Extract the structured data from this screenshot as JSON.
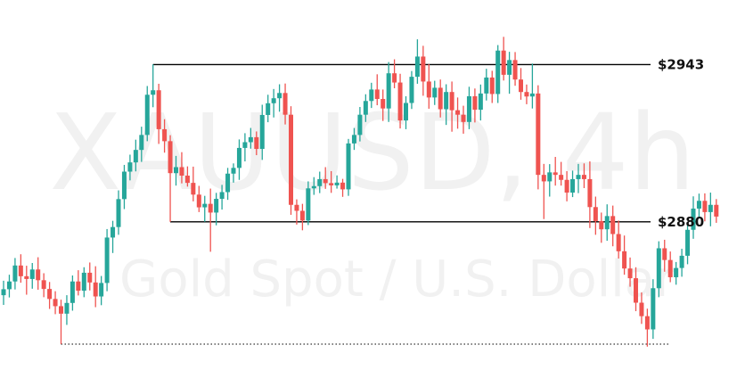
{
  "watermark": {
    "symbol": "XAUUSD, 4h",
    "description": "Gold Spot / U.S. Dollar"
  },
  "chart_data": {
    "type": "candlestick",
    "grid": false,
    "colors": {
      "up": "#26a69a",
      "down": "#ef5350",
      "line": "#000000"
    },
    "ylim": [
      2826,
      2956
    ],
    "levels": [
      {
        "label": "$2943",
        "value": 2943,
        "style": "solid",
        "from_candle": 26
      },
      {
        "label": "$2880",
        "value": 2880,
        "style": "solid",
        "from_candle": 29
      },
      {
        "label": "",
        "value": 2831,
        "style": "dotted",
        "from_candle": 10,
        "to_candle": 116
      }
    ],
    "candles": [
      [
        2850.6,
        2856.4,
        2846.7,
        2853.0
      ],
      [
        2853.0,
        2858.8,
        2849.7,
        2856.1
      ],
      [
        2856.1,
        2865.5,
        2852.9,
        2862.5
      ],
      [
        2862.5,
        2867.0,
        2855.6,
        2858.2
      ],
      [
        2858.2,
        2862.4,
        2850.8,
        2857.1
      ],
      [
        2857.1,
        2863.5,
        2853.2,
        2860.9
      ],
      [
        2860.9,
        2865.8,
        2852.8,
        2856.6
      ],
      [
        2856.6,
        2859.4,
        2849.8,
        2853.1
      ],
      [
        2853.1,
        2855.9,
        2845.1,
        2849.1
      ],
      [
        2849.1,
        2852.2,
        2843.0,
        2846.2
      ],
      [
        2846.2,
        2848.8,
        2831.0,
        2843.2
      ],
      [
        2843.2,
        2850.6,
        2838.7,
        2847.5
      ],
      [
        2847.5,
        2858.5,
        2844.4,
        2856.1
      ],
      [
        2856.1,
        2860.6,
        2850.5,
        2852.4
      ],
      [
        2852.4,
        2861.8,
        2849.8,
        2859.6
      ],
      [
        2859.6,
        2863.7,
        2852.5,
        2855.7
      ],
      [
        2855.7,
        2862.2,
        2845.8,
        2850.1
      ],
      [
        2850.1,
        2858.3,
        2846.6,
        2855.5
      ],
      [
        2855.5,
        2877.1,
        2852.2,
        2873.7
      ],
      [
        2873.7,
        2880.4,
        2867.5,
        2877.9
      ],
      [
        2877.9,
        2892.6,
        2874.8,
        2889.1
      ],
      [
        2889.1,
        2902.8,
        2885.1,
        2900.1
      ],
      [
        2900.1,
        2906.9,
        2896.6,
        2903.8
      ],
      [
        2903.8,
        2912.9,
        2900.2,
        2908.8
      ],
      [
        2908.8,
        2918.1,
        2904.0,
        2914.8
      ],
      [
        2914.8,
        2934.4,
        2912.3,
        2930.9
      ],
      [
        2930.9,
        2943.1,
        2925.9,
        2932.7
      ],
      [
        2932.7,
        2935.3,
        2911.2,
        2917.1
      ],
      [
        2917.1,
        2921.1,
        2907.7,
        2912.3
      ],
      [
        2912.3,
        2914.7,
        2880.0,
        2899.5
      ],
      [
        2899.5,
        2906.4,
        2894.5,
        2901.9
      ],
      [
        2901.9,
        2907.9,
        2895.4,
        2898.5
      ],
      [
        2898.5,
        2902.2,
        2894.1,
        2895.6
      ],
      [
        2895.6,
        2902.1,
        2888.2,
        2890.9
      ],
      [
        2890.9,
        2894.4,
        2883.9,
        2885.8
      ],
      [
        2885.8,
        2890.4,
        2880.0,
        2887.2
      ],
      [
        2887.2,
        2893.3,
        2868.0,
        2883.7
      ],
      [
        2883.7,
        2891.6,
        2878.6,
        2889.2
      ],
      [
        2889.2,
        2894.8,
        2884.9,
        2891.9
      ],
      [
        2891.9,
        2901.6,
        2888.8,
        2899.3
      ],
      [
        2899.3,
        2903.4,
        2895.7,
        2901.6
      ],
      [
        2901.6,
        2913.0,
        2896.8,
        2909.6
      ],
      [
        2909.6,
        2915.5,
        2904.2,
        2911.9
      ],
      [
        2911.9,
        2917.6,
        2909.3,
        2913.9
      ],
      [
        2913.9,
        2916.2,
        2906.7,
        2909.2
      ],
      [
        2909.2,
        2926.9,
        2904.8,
        2922.8
      ],
      [
        2922.8,
        2930.9,
        2919.9,
        2927.5
      ],
      [
        2927.5,
        2933.2,
        2921.8,
        2929.5
      ],
      [
        2929.5,
        2935.1,
        2924.1,
        2931.6
      ],
      [
        2931.6,
        2935.4,
        2919.0,
        2922.9
      ],
      [
        2922.9,
        2926.3,
        2882.8,
        2886.8
      ],
      [
        2886.8,
        2889.0,
        2878.9,
        2884.4
      ],
      [
        2884.4,
        2887.2,
        2876.6,
        2880.5
      ],
      [
        2880.5,
        2896.2,
        2878.7,
        2893.4
      ],
      [
        2893.4,
        2897.9,
        2890.8,
        2894.3
      ],
      [
        2894.3,
        2900.1,
        2891.5,
        2897.1
      ],
      [
        2897.1,
        2901.9,
        2893.2,
        2895.5
      ],
      [
        2895.5,
        2900.3,
        2891.6,
        2894.6
      ],
      [
        2894.6,
        2898.6,
        2893.3,
        2895.7
      ],
      [
        2895.7,
        2897.2,
        2890.0,
        2893.0
      ],
      [
        2893.0,
        2913.2,
        2890.4,
        2911.4
      ],
      [
        2911.4,
        2917.6,
        2908.8,
        2914.8
      ],
      [
        2914.8,
        2926.0,
        2912.2,
        2922.9
      ],
      [
        2922.9,
        2931.1,
        2920.0,
        2928.4
      ],
      [
        2928.4,
        2935.7,
        2925.6,
        2933.0
      ],
      [
        2933.0,
        2939.1,
        2926.7,
        2929.2
      ],
      [
        2929.2,
        2933.0,
        2920.4,
        2925.4
      ],
      [
        2925.4,
        2944.0,
        2920.0,
        2939.5
      ],
      [
        2939.5,
        2945.1,
        2933.5,
        2935.8
      ],
      [
        2935.8,
        2939.3,
        2917.4,
        2920.6
      ],
      [
        2920.6,
        2930.3,
        2917.1,
        2927.6
      ],
      [
        2927.6,
        2940.4,
        2925.2,
        2938.1
      ],
      [
        2938.1,
        2953.1,
        2935.3,
        2946.2
      ],
      [
        2946.2,
        2950.5,
        2930.5,
        2936.2
      ],
      [
        2936.2,
        2943.2,
        2925.3,
        2929.8
      ],
      [
        2929.8,
        2936.5,
        2926.8,
        2933.7
      ],
      [
        2933.7,
        2937.0,
        2921.8,
        2925.1
      ],
      [
        2925.1,
        2935.1,
        2918.8,
        2932.0
      ],
      [
        2932.0,
        2936.2,
        2916.1,
        2924.7
      ],
      [
        2924.7,
        2929.8,
        2917.3,
        2922.9
      ],
      [
        2922.9,
        2926.5,
        2915.3,
        2920.0
      ],
      [
        2920.0,
        2934.1,
        2917.1,
        2930.3
      ],
      [
        2930.3,
        2933.4,
        2919.8,
        2924.9
      ],
      [
        2924.9,
        2935.0,
        2920.6,
        2931.4
      ],
      [
        2931.4,
        2941.3,
        2928.6,
        2937.8
      ],
      [
        2937.8,
        2940.5,
        2927.6,
        2931.2
      ],
      [
        2931.2,
        2950.8,
        2927.6,
        2948.6
      ],
      [
        2948.6,
        2954.1,
        2936.6,
        2938.9
      ],
      [
        2938.9,
        2948.1,
        2931.3,
        2944.8
      ],
      [
        2944.8,
        2948.0,
        2934.5,
        2937.0
      ],
      [
        2937.0,
        2941.6,
        2928.9,
        2932.0
      ],
      [
        2932.0,
        2935.0,
        2927.1,
        2930.2
      ],
      [
        2930.2,
        2943.4,
        2925.4,
        2931.4
      ],
      [
        2931.4,
        2934.7,
        2893.0,
        2898.8
      ],
      [
        2898.8,
        2903.2,
        2881.1,
        2896.2
      ],
      [
        2896.2,
        2903.1,
        2890.1,
        2899.8
      ],
      [
        2899.8,
        2906.0,
        2894.5,
        2898.8
      ],
      [
        2898.8,
        2904.0,
        2894.5,
        2896.8
      ],
      [
        2896.8,
        2900.3,
        2888.2,
        2891.7
      ],
      [
        2891.7,
        2900.5,
        2889.9,
        2897.1
      ],
      [
        2897.1,
        2903.2,
        2891.5,
        2898.8
      ],
      [
        2898.8,
        2903.4,
        2893.5,
        2897.1
      ],
      [
        2897.1,
        2904.2,
        2877.5,
        2885.9
      ],
      [
        2885.9,
        2890.1,
        2874.8,
        2880.3
      ],
      [
        2880.3,
        2883.7,
        2871.6,
        2877.0
      ],
      [
        2877.0,
        2887.0,
        2872.4,
        2882.3
      ],
      [
        2882.3,
        2886.5,
        2870.2,
        2875.1
      ],
      [
        2875.1,
        2880.5,
        2865.3,
        2868.2
      ],
      [
        2868.2,
        2874.5,
        2858.8,
        2861.3
      ],
      [
        2861.3,
        2865.7,
        2854.0,
        2857.4
      ],
      [
        2857.4,
        2861.8,
        2844.2,
        2847.6
      ],
      [
        2847.6,
        2851.7,
        2839.1,
        2842.2
      ],
      [
        2842.2,
        2845.2,
        2830.0,
        2836.9
      ],
      [
        2836.9,
        2857.0,
        2833.1,
        2853.4
      ],
      [
        2853.4,
        2872.2,
        2849.8,
        2869.4
      ],
      [
        2869.4,
        2872.8,
        2860.0,
        2864.7
      ],
      [
        2864.7,
        2868.1,
        2855.8,
        2857.8
      ],
      [
        2857.8,
        2863.9,
        2854.8,
        2861.5
      ],
      [
        2861.5,
        2869.2,
        2858.0,
        2866.4
      ],
      [
        2866.4,
        2879.4,
        2863.0,
        2876.8
      ],
      [
        2876.8,
        2890.2,
        2873.2,
        2885.3
      ],
      [
        2885.3,
        2891.3,
        2881.8,
        2888.4
      ],
      [
        2888.4,
        2891.4,
        2880.2,
        2883.9
      ],
      [
        2883.9,
        2891.7,
        2878.2,
        2886.8
      ],
      [
        2886.8,
        2889.1,
        2879.6,
        2882.1
      ]
    ]
  }
}
